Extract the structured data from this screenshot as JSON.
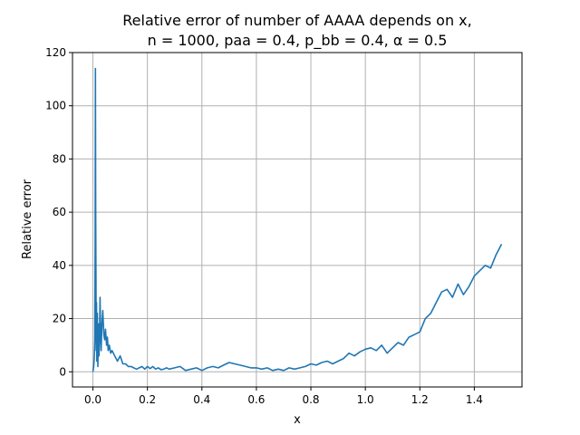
{
  "chart_data": {
    "type": "line",
    "title": "Relative error of number of AAAA depends on x,",
    "subtitle": "n = 1000, paa = 0.4, p_bb = 0.4, α = 0.5",
    "xlabel": "x",
    "ylabel": "Relative error",
    "xlim": [
      -0.075,
      1.575
    ],
    "ylim": [
      -5.7,
      120
    ],
    "xticks": [
      0.0,
      0.2,
      0.4,
      0.6,
      0.8,
      1.0,
      1.2,
      1.4
    ],
    "xtick_labels": [
      "0.0",
      "0.2",
      "0.4",
      "0.6",
      "0.8",
      "1.0",
      "1.2",
      "1.4"
    ],
    "yticks": [
      0,
      20,
      40,
      60,
      80,
      100,
      120
    ],
    "ytick_labels": [
      "0",
      "20",
      "40",
      "60",
      "80",
      "100",
      "120"
    ],
    "grid": true,
    "line_color": "#1f77b4",
    "series": [
      {
        "x": [
          0.0,
          0.003,
          0.005,
          0.007,
          0.008,
          0.009,
          0.01,
          0.011,
          0.012,
          0.013,
          0.014,
          0.016,
          0.018,
          0.02,
          0.022,
          0.024,
          0.026,
          0.028,
          0.03,
          0.033,
          0.036,
          0.04,
          0.043,
          0.046,
          0.05,
          0.053,
          0.056,
          0.06,
          0.065,
          0.07,
          0.08,
          0.09,
          0.1,
          0.11,
          0.12,
          0.13,
          0.14,
          0.15,
          0.16,
          0.17,
          0.18,
          0.19,
          0.2,
          0.21,
          0.22,
          0.23,
          0.24,
          0.25,
          0.26,
          0.27,
          0.28,
          0.3,
          0.32,
          0.34,
          0.36,
          0.38,
          0.4,
          0.42,
          0.44,
          0.46,
          0.48,
          0.5,
          0.52,
          0.54,
          0.56,
          0.58,
          0.6,
          0.62,
          0.64,
          0.66,
          0.68,
          0.7,
          0.72,
          0.74,
          0.76,
          0.78,
          0.8,
          0.82,
          0.84,
          0.86,
          0.88,
          0.9,
          0.92,
          0.94,
          0.96,
          0.98,
          1.0,
          1.02,
          1.04,
          1.06,
          1.08,
          1.1,
          1.12,
          1.14,
          1.16,
          1.18,
          1.2,
          1.22,
          1.24,
          1.26,
          1.28,
          1.3,
          1.32,
          1.34,
          1.36,
          1.38,
          1.4,
          1.42,
          1.44,
          1.46,
          1.48,
          1.5
        ],
        "y": [
          0,
          2,
          5,
          12,
          48,
          114,
          60,
          35,
          8,
          26,
          4,
          22,
          2,
          18,
          6,
          12,
          28,
          15,
          8,
          18,
          23,
          14,
          12,
          16,
          10,
          13,
          8,
          10,
          7,
          8,
          6,
          4,
          6,
          3,
          3,
          2,
          2,
          1.5,
          1,
          1.5,
          2,
          1,
          2,
          1.2,
          2,
          1,
          1.5,
          0.8,
          1,
          1.5,
          1,
          1.5,
          2,
          0.5,
          1,
          1.5,
          0.5,
          1.5,
          2,
          1.5,
          2.5,
          3.5,
          3,
          2.5,
          2,
          1.5,
          1.5,
          1,
          1.5,
          0.5,
          1,
          0.5,
          1.5,
          1,
          1.5,
          2,
          3,
          2.5,
          3.5,
          4,
          3,
          4,
          5,
          7,
          6,
          7.5,
          8.5,
          9,
          8,
          10,
          7,
          9,
          11,
          10,
          13,
          14,
          15,
          20,
          22,
          26,
          30,
          31,
          28,
          33,
          29,
          32,
          36,
          38,
          40,
          39,
          44,
          48
        ]
      }
    ]
  }
}
